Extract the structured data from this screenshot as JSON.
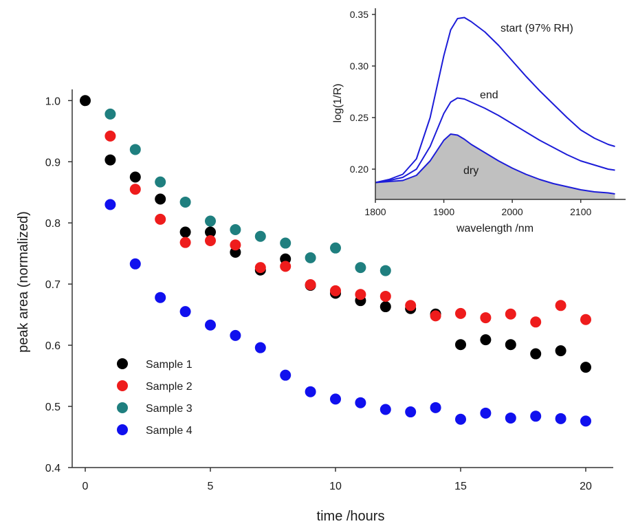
{
  "chart_data": [
    {
      "type": "scatter",
      "title": "",
      "xlabel": "time /hours",
      "ylabel": "peak area (normalized)",
      "xlim": [
        0,
        21
      ],
      "ylim": [
        0.4,
        1.02
      ],
      "xticks": [
        0,
        5,
        10,
        15,
        20
      ],
      "yticks": [
        0.4,
        0.5,
        0.6,
        0.7,
        0.8,
        0.9,
        1.0
      ],
      "xtick_labels": [
        "0",
        "5",
        "10",
        "15",
        "20"
      ],
      "ytick_labels": [
        "0.4",
        "0.5",
        "0.6",
        "0.7",
        "0.8",
        "0.9",
        "1.0"
      ],
      "grid": false,
      "legend": "bottom-left",
      "series": [
        {
          "name": "Sample 1",
          "color": "#000000",
          "x": [
            0,
            1,
            2,
            3,
            4,
            5,
            6,
            7,
            8,
            9,
            10,
            11,
            12,
            13,
            14,
            15,
            16,
            17,
            18,
            19,
            20
          ],
          "y": [
            1.0,
            0.903,
            0.875,
            0.839,
            0.785,
            0.785,
            0.752,
            0.723,
            0.741,
            0.698,
            0.685,
            0.673,
            0.663,
            0.66,
            0.651,
            0.601,
            0.609,
            0.601,
            0.586,
            0.591,
            0.564
          ]
        },
        {
          "name": "Sample 2",
          "color": "#ee1c1c",
          "x": [
            1,
            2,
            3,
            4,
            5,
            6,
            7,
            8,
            9,
            10,
            11,
            12,
            13,
            14,
            15,
            16,
            17,
            18,
            19,
            20
          ],
          "y": [
            0.942,
            0.855,
            0.806,
            0.768,
            0.771,
            0.764,
            0.727,
            0.729,
            0.699,
            0.689,
            0.683,
            0.68,
            0.665,
            0.648,
            0.652,
            0.645,
            0.651,
            0.638,
            0.665,
            0.642
          ]
        },
        {
          "name": "Sample 3",
          "color": "#1f7f7f",
          "x": [
            1,
            2,
            3,
            4,
            5,
            6,
            7,
            8,
            9,
            10,
            11,
            12
          ],
          "y": [
            0.978,
            0.92,
            0.867,
            0.834,
            0.803,
            0.789,
            0.778,
            0.767,
            0.743,
            0.759,
            0.727,
            0.722
          ]
        },
        {
          "name": "Sample 4",
          "color": "#1010ee",
          "x": [
            1,
            2,
            3,
            4,
            5,
            6,
            7,
            8,
            9,
            10,
            11,
            12,
            13,
            14,
            15,
            16,
            17,
            18,
            19,
            20
          ],
          "y": [
            0.83,
            0.733,
            0.678,
            0.655,
            0.633,
            0.616,
            0.596,
            0.551,
            0.524,
            0.512,
            0.506,
            0.495,
            0.491,
            0.498,
            0.479,
            0.489,
            0.481,
            0.484,
            0.48,
            0.476
          ]
        }
      ]
    },
    {
      "type": "line",
      "title": "",
      "xlabel": "wavelength /nm",
      "ylabel": "log(1/R)",
      "xlim": [
        1800,
        2150
      ],
      "ylim": [
        0.175,
        0.352
      ],
      "xticks": [
        1800,
        1900,
        2000,
        2100
      ],
      "yticks": [
        0.2,
        0.25,
        0.3,
        0.35
      ],
      "xtick_labels": [
        "1800",
        "1900",
        "2000",
        "2100"
      ],
      "ytick_labels": [
        "0.20",
        "0.25",
        "0.30",
        "0.35"
      ],
      "grid": false,
      "line_color": "#1c1cd8",
      "fill_color": "#c0c0c0",
      "series": [
        {
          "name": "start (97% RH)",
          "x": [
            1800,
            1820,
            1840,
            1860,
            1880,
            1890,
            1900,
            1910,
            1920,
            1930,
            1940,
            1960,
            1980,
            2000,
            2020,
            2040,
            2060,
            2080,
            2100,
            2120,
            2140,
            2150
          ],
          "values": [
            0.187,
            0.19,
            0.195,
            0.21,
            0.25,
            0.28,
            0.31,
            0.335,
            0.346,
            0.347,
            0.343,
            0.333,
            0.32,
            0.305,
            0.29,
            0.276,
            0.263,
            0.25,
            0.238,
            0.23,
            0.224,
            0.222
          ]
        },
        {
          "name": "end",
          "x": [
            1800,
            1820,
            1840,
            1860,
            1880,
            1890,
            1900,
            1910,
            1920,
            1930,
            1940,
            1960,
            1980,
            2000,
            2020,
            2040,
            2060,
            2080,
            2100,
            2120,
            2140,
            2150
          ],
          "values": [
            0.187,
            0.189,
            0.192,
            0.2,
            0.222,
            0.238,
            0.254,
            0.265,
            0.269,
            0.268,
            0.265,
            0.259,
            0.252,
            0.244,
            0.236,
            0.228,
            0.221,
            0.214,
            0.208,
            0.204,
            0.2,
            0.199
          ]
        },
        {
          "name": "dry",
          "x": [
            1800,
            1820,
            1840,
            1860,
            1880,
            1890,
            1900,
            1910,
            1920,
            1930,
            1940,
            1960,
            1980,
            2000,
            2020,
            2040,
            2060,
            2080,
            2100,
            2120,
            2140,
            2150
          ],
          "values": [
            0.187,
            0.188,
            0.189,
            0.194,
            0.208,
            0.218,
            0.228,
            0.234,
            0.233,
            0.229,
            0.224,
            0.216,
            0.208,
            0.201,
            0.195,
            0.19,
            0.186,
            0.183,
            0.18,
            0.178,
            0.177,
            0.176
          ]
        }
      ]
    }
  ]
}
